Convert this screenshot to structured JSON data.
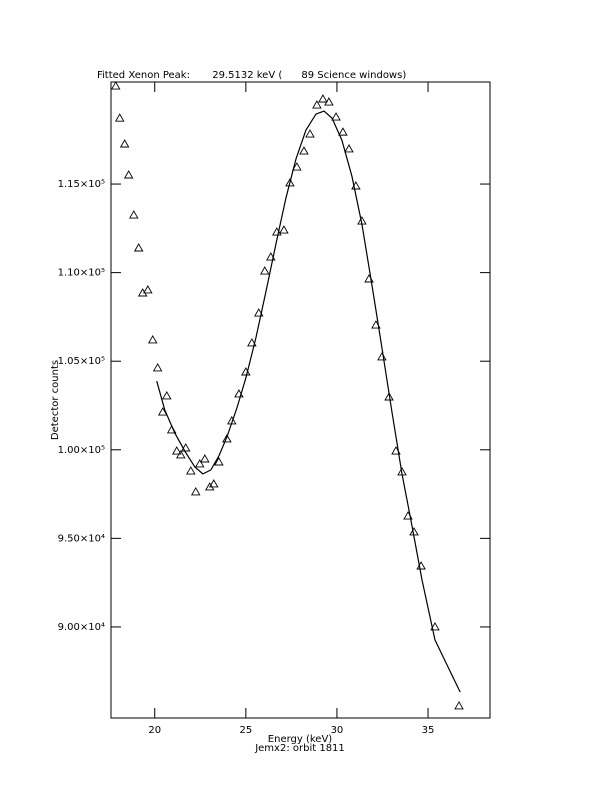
{
  "chart_data": {
    "type": "scatter",
    "title": "Fitted Xenon Peak:       29.5132 keV (      89 Science windows)",
    "x_label": "Energy (keV)",
    "subtitle": "Jemx2: orbit 1811",
    "y_label": "Detector counts",
    "xlim": [
      17.6,
      38.4
    ],
    "ylim": [
      84860,
      120760
    ],
    "xticks": [
      20,
      25,
      30,
      35
    ],
    "yticks": [
      {
        "value": 90000,
        "label": "9.00×10⁴"
      },
      {
        "value": 95000,
        "label": "9.50×10⁴"
      },
      {
        "value": 100000,
        "label": "1.00×10⁵"
      },
      {
        "value": 105000,
        "label": "1.05×10⁵"
      },
      {
        "value": 110000,
        "label": "1.10×10⁵"
      },
      {
        "value": 115000,
        "label": "1.15×10⁵"
      }
    ],
    "series": [
      {
        "color": "#000000",
        "marker": "triangle",
        "x": [
          17.86,
          18.08,
          18.35,
          18.57,
          18.85,
          19.12,
          19.34,
          19.62,
          19.89,
          20.16,
          20.44,
          20.66,
          20.93,
          21.21,
          21.43,
          21.7,
          21.98,
          22.25,
          22.47,
          22.75,
          23.02,
          23.24,
          23.52,
          23.96,
          24.23,
          24.62,
          25.0,
          25.33,
          25.71,
          26.04,
          26.37,
          26.7,
          27.09,
          27.42,
          27.8,
          28.19,
          28.52,
          28.9,
          29.23,
          29.56,
          29.95,
          30.33,
          30.66,
          31.04,
          31.37,
          31.76,
          32.14,
          32.47,
          32.86,
          33.24,
          33.57,
          33.9,
          34.23,
          34.62,
          35.38,
          36.7
        ],
        "values": [
          120530,
          118720,
          117260,
          115510,
          113250,
          111390,
          108850,
          109020,
          106200,
          104620,
          102130,
          103040,
          101120,
          99930,
          99710,
          100100,
          98800,
          97620,
          99200,
          99480,
          97900,
          98070,
          99310,
          100610,
          101630,
          103150,
          104390,
          106030,
          107720,
          110090,
          110880,
          112290,
          112400,
          115060,
          115960,
          116860,
          117820,
          119460,
          119800,
          119630,
          118780,
          117930,
          116980,
          114890,
          112910,
          109640,
          107040,
          105240,
          102980,
          99930,
          98750,
          96260,
          95360,
          93440,
          89999,
          85540
        ]
      },
      {
        "color": "#000000",
        "marker": "line",
        "x": [
          20.11,
          20.55,
          21.1,
          21.65,
          22.2,
          22.64,
          23.08,
          23.52,
          23.96,
          24.51,
          25.0,
          25.55,
          26.1,
          26.65,
          27.2,
          27.75,
          28.3,
          28.85,
          29.29,
          29.73,
          30.27,
          30.82,
          31.37,
          31.92,
          32.47,
          33.02,
          33.57,
          34.12,
          34.67,
          35.38,
          36.04,
          36.76
        ],
        "values": [
          103880,
          102250,
          100950,
          99930,
          99030,
          98640,
          98860,
          99650,
          100720,
          102360,
          104050,
          106310,
          108910,
          111610,
          114210,
          116410,
          118050,
          118950,
          119120,
          118720,
          117480,
          115450,
          112740,
          109300,
          105750,
          102130,
          98640,
          95700,
          92650,
          89270,
          87860,
          86330
        ]
      }
    ]
  }
}
